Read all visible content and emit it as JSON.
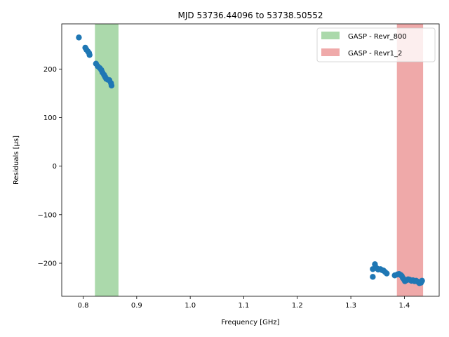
{
  "chart_data": {
    "type": "scatter",
    "title": "MJD 53736.44096 to 53738.50552",
    "xlabel": "Frequency [GHz]",
    "ylabel": "Residuals [μs]",
    "xlim": [
      0.76,
      1.465
    ],
    "ylim": [
      -268,
      293
    ],
    "xticks": [
      0.8,
      0.9,
      1.0,
      1.1,
      1.2,
      1.3,
      1.4
    ],
    "xtick_labels": [
      "0.8",
      "0.9",
      "1.0",
      "1.1",
      "1.2",
      "1.3",
      "1.4"
    ],
    "yticks": [
      -200,
      -100,
      0,
      100,
      200
    ],
    "ytick_labels": [
      "−200",
      "−100",
      "0",
      "100",
      "200"
    ],
    "grid": false,
    "legend_position": "top-right",
    "bands": [
      {
        "name": "GASP - Revr_800",
        "x_range": [
          0.822,
          0.866
        ],
        "color": "#2ca02c",
        "opacity": 0.4
      },
      {
        "name": "GASP - Revr1_2",
        "x_range": [
          1.386,
          1.435
        ],
        "color": "#d62728",
        "opacity": 0.4
      }
    ],
    "series": [
      {
        "color": "#1f77b4",
        "points": [
          [
            0.792,
            265
          ],
          [
            0.804,
            244
          ],
          [
            0.806,
            240
          ],
          [
            0.809,
            236
          ],
          [
            0.811,
            233
          ],
          [
            0.812,
            229
          ],
          [
            0.824,
            211
          ],
          [
            0.827,
            206
          ],
          [
            0.831,
            202
          ],
          [
            0.834,
            198
          ],
          [
            0.836,
            193
          ],
          [
            0.839,
            188
          ],
          [
            0.841,
            184
          ],
          [
            0.843,
            180
          ],
          [
            0.846,
            178
          ],
          [
            0.849,
            177
          ],
          [
            0.852,
            171
          ],
          [
            0.853,
            166
          ],
          [
            1.341,
            -212
          ],
          [
            1.341,
            -228
          ],
          [
            1.345,
            -202
          ],
          [
            1.348,
            -210
          ],
          [
            1.351,
            -213
          ],
          [
            1.355,
            -212
          ],
          [
            1.358,
            -214
          ],
          [
            1.361,
            -215
          ],
          [
            1.364,
            -218
          ],
          [
            1.367,
            -221
          ],
          [
            1.382,
            -225
          ],
          [
            1.387,
            -223
          ],
          [
            1.39,
            -222
          ],
          [
            1.393,
            -224
          ],
          [
            1.395,
            -226
          ],
          [
            1.397,
            -230
          ],
          [
            1.399,
            -233
          ],
          [
            1.401,
            -237
          ],
          [
            1.404,
            -235
          ],
          [
            1.407,
            -233
          ],
          [
            1.41,
            -234
          ],
          [
            1.413,
            -236
          ],
          [
            1.416,
            -235
          ],
          [
            1.419,
            -237
          ],
          [
            1.422,
            -236
          ],
          [
            1.425,
            -238
          ],
          [
            1.428,
            -241
          ],
          [
            1.431,
            -240
          ],
          [
            1.433,
            -236
          ]
        ]
      }
    ]
  }
}
